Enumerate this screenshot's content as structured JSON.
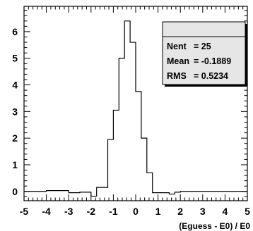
{
  "chart_data": {
    "type": "histogram",
    "xlabel": "(Eguess - E0) / E0",
    "ylabel": "",
    "xlim": [
      -5,
      5
    ],
    "ylim": [
      -0.35,
      6.95
    ],
    "grid": false,
    "bin_edges": [
      -5.0,
      -4.5,
      -4.0,
      -3.5,
      -3.0,
      -2.5,
      -2.0,
      -1.75,
      -1.5,
      -1.25,
      -1.0,
      -0.75,
      -0.5,
      -0.25,
      0.0,
      0.25,
      0.5,
      0.75,
      1.0,
      1.25,
      1.5,
      1.75,
      2.0,
      2.5,
      3.0,
      5.0
    ],
    "values": [
      0.0,
      0.0,
      0.03,
      0.03,
      -0.05,
      -0.03,
      -0.18,
      0.15,
      0.15,
      1.95,
      3.05,
      5.0,
      6.4,
      5.6,
      3.75,
      2.0,
      0.7,
      -0.05,
      -0.05,
      -0.05,
      -0.1,
      -0.03,
      0.0,
      0.0,
      0.0
    ],
    "x_ticks": [
      "-5",
      "-4",
      "-3",
      "-2",
      "-1",
      "0",
      "1",
      "2",
      "3",
      "4",
      "5"
    ],
    "y_ticks": [
      "0",
      "1",
      "2",
      "3",
      "4",
      "5",
      "6"
    ]
  },
  "stats": {
    "entries": [
      {
        "label": "Nent",
        "value": "= 25"
      },
      {
        "label": "Mean",
        "value": "= -0.1889"
      },
      {
        "label": "RMS",
        "value": "= 0.5234"
      }
    ]
  }
}
